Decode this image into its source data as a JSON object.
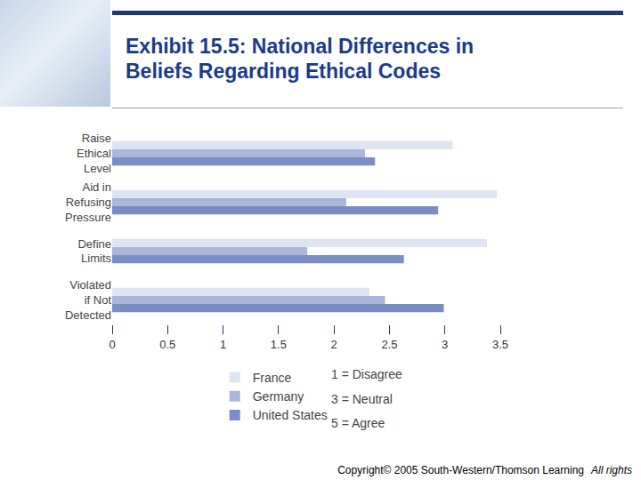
{
  "chart_data": {
    "type": "bar",
    "title": "Exhibit 15.5: National Differences in Beliefs Regarding Ethical Codes",
    "orientation": "horizontal",
    "categories": [
      "Raise Ethical Level",
      "Aid in Refusing Pressure",
      "Define Limits",
      "Violated if Not Detected"
    ],
    "series": [
      {
        "name": "France",
        "color": "#dfe4f1",
        "values": [
          3.07,
          3.47,
          3.38,
          2.32
        ]
      },
      {
        "name": "Germany",
        "color": "#aab6db",
        "values": [
          2.28,
          2.11,
          1.76,
          2.46
        ]
      },
      {
        "name": "United States",
        "color": "#7a8ec6",
        "values": [
          2.37,
          2.94,
          2.63,
          2.99
        ]
      }
    ],
    "xlim": [
      0,
      3.5
    ],
    "xticks": [
      0,
      0.5,
      1,
      1.5,
      2,
      2.5,
      3,
      3.5
    ],
    "grid": false,
    "legend": "bottom",
    "scale_notes": [
      "1 = Disagree",
      "3 = Neutral",
      "5 = Agree"
    ],
    "copyright": "Copyright© 2005 South-Western/Thomson Learning",
    "rights_notice": "All rights"
  }
}
